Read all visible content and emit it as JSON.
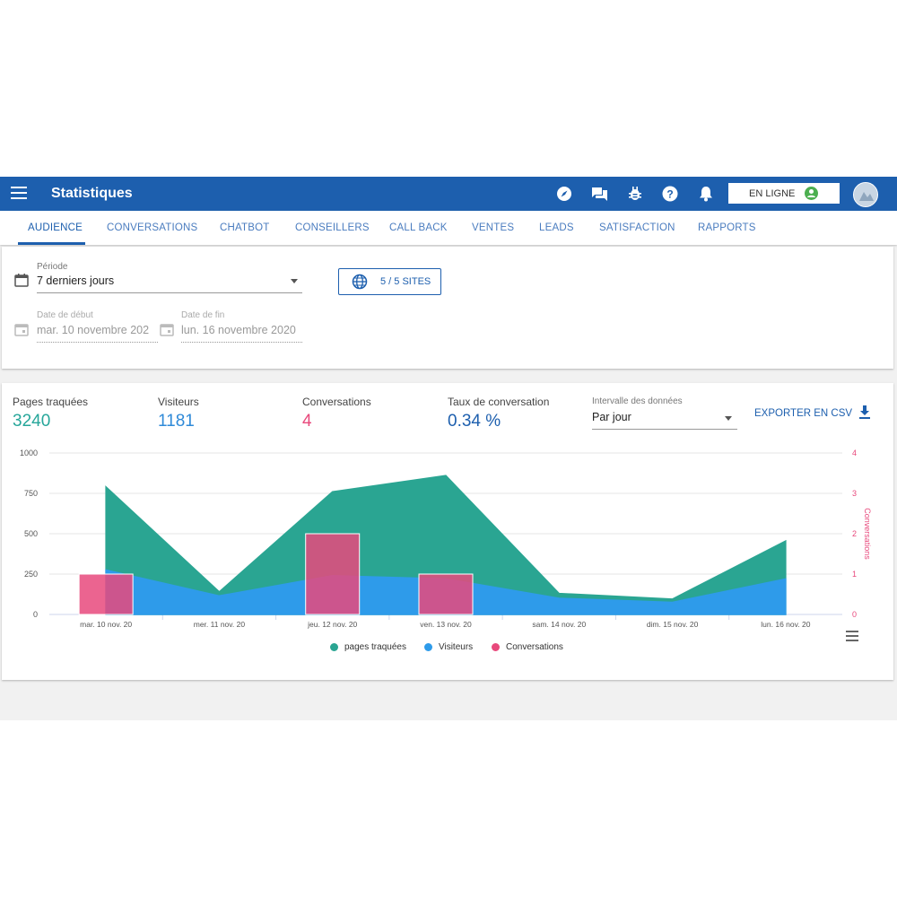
{
  "header": {
    "title": "Statistiques",
    "status_label": "EN LIGNE",
    "icons": [
      "compass-icon",
      "chat-icon",
      "bug-icon",
      "help-icon",
      "bell-icon"
    ]
  },
  "tabs": [
    {
      "label": "AUDIENCE",
      "active": true
    },
    {
      "label": "CONVERSATIONS"
    },
    {
      "label": "CHATBOT"
    },
    {
      "label": "CONSEILLERS"
    },
    {
      "label": "CALL BACK"
    },
    {
      "label": "VENTES"
    },
    {
      "label": "LEADS"
    },
    {
      "label": "SATISFACTION"
    },
    {
      "label": "RAPPORTS"
    }
  ],
  "filters": {
    "period_label": "Période",
    "period_value": "7 derniers jours",
    "sites_button": "5 / 5 SITES",
    "start_label": "Date de début",
    "start_value": "mar. 10 novembre 202",
    "end_label": "Date de fin",
    "end_value": "lun. 16 novembre 2020"
  },
  "kpis": [
    {
      "label": "Pages traquées",
      "value": "3240",
      "color": "#26a69a"
    },
    {
      "label": "Visiteurs",
      "value": "1181",
      "color": "#2f8ad8"
    },
    {
      "label": "Conversations",
      "value": "4",
      "color": "#e8497c"
    },
    {
      "label": "Taux de conversation",
      "value": "0.34 %",
      "color": "#1d5fae"
    }
  ],
  "interval": {
    "label": "Intervalle des données",
    "value": "Par jour"
  },
  "export_label": "EXPORTER EN CSV",
  "colors": {
    "primary": "#1d5fae",
    "pages": "#2aa592",
    "visitors": "#2e9bea",
    "conversations": "#e8497c"
  },
  "chart_data": {
    "type": "area",
    "categories": [
      "mar. 10 nov. 20",
      "mer. 11 nov. 20",
      "jeu. 12 nov. 20",
      "ven. 13 nov. 20",
      "sam. 14 nov. 20",
      "dim. 15 nov. 20",
      "lun. 16 nov. 20"
    ],
    "series": [
      {
        "name": "pages traquées",
        "type": "area",
        "axis": "left",
        "color": "#2aa592",
        "values": [
          790,
          140,
          760,
          860,
          130,
          95,
          455
        ]
      },
      {
        "name": "Visiteurs",
        "type": "area",
        "axis": "left",
        "color": "#2e9bea",
        "values": [
          275,
          115,
          240,
          220,
          100,
          75,
          220
        ]
      },
      {
        "name": "Conversations",
        "type": "bar",
        "axis": "right",
        "color": "#e8497c",
        "values": [
          1,
          0,
          2,
          1,
          0,
          0,
          0
        ]
      }
    ],
    "yticks_left": [
      "0",
      "250",
      "500",
      "750",
      "1000"
    ],
    "yticks_right": [
      "0",
      "1",
      "2",
      "3",
      "4"
    ],
    "ylim": [
      0,
      1000
    ],
    "ylim_right": [
      0,
      4
    ],
    "ylabel_right": "Conversations",
    "grid": true,
    "legend": "bottom"
  }
}
